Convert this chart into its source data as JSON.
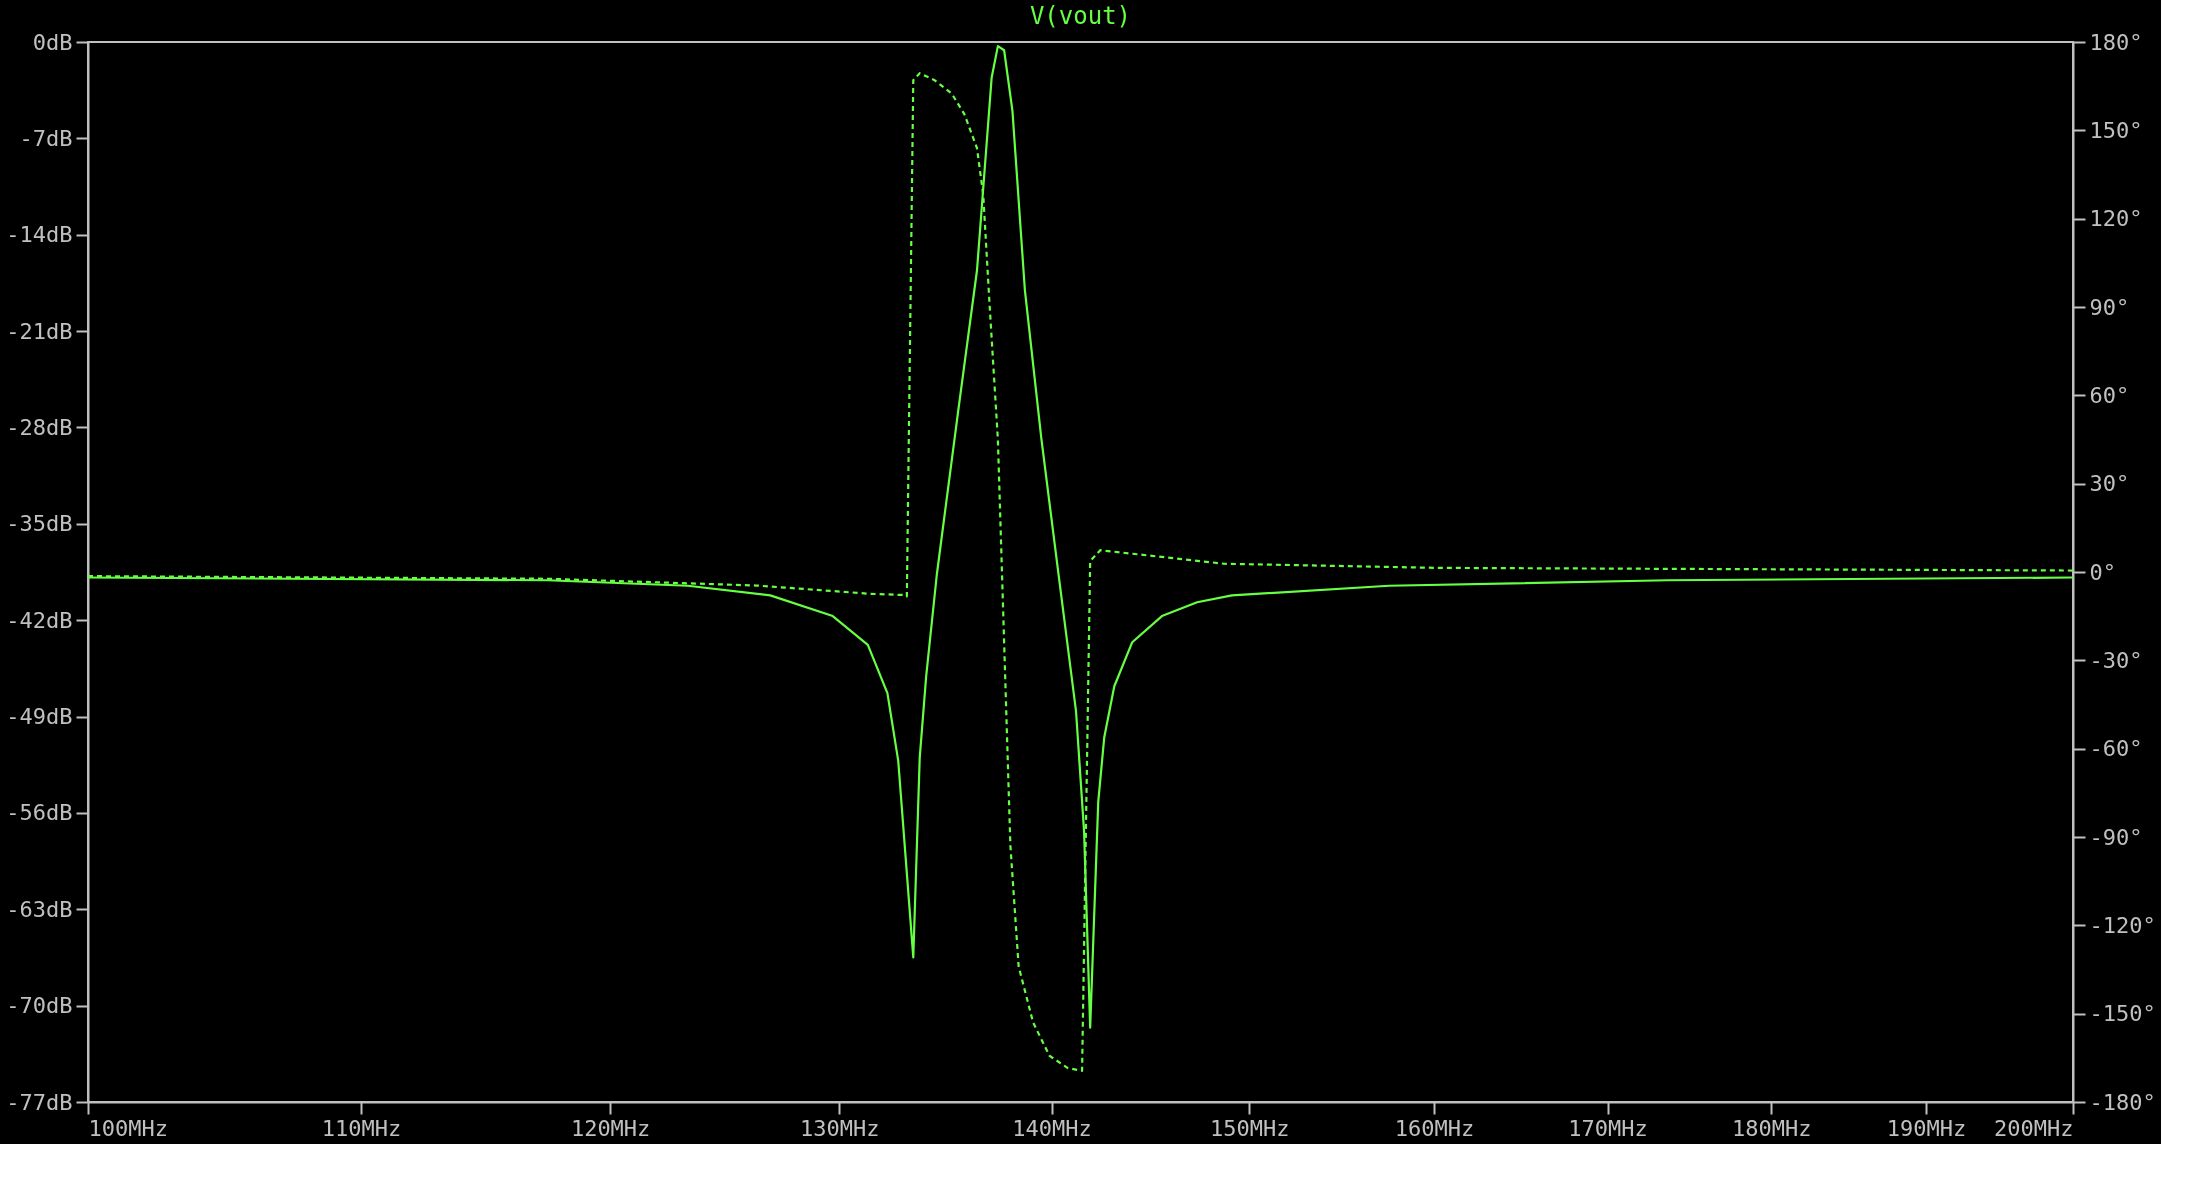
{
  "chart_data": {
    "type": "line",
    "title": "V(vout)",
    "log": "x",
    "xlim": [
      100,
      200
    ],
    "xticks": [
      {
        "value": 100,
        "label": "100MHz"
      },
      {
        "value": 110,
        "label": "110MHz"
      },
      {
        "value": 120,
        "label": "120MHz"
      },
      {
        "value": 130,
        "label": "130MHz"
      },
      {
        "value": 140,
        "label": "140MHz"
      },
      {
        "value": 150,
        "label": "150MHz"
      },
      {
        "value": 160,
        "label": "160MHz"
      },
      {
        "value": 170,
        "label": "170MHz"
      },
      {
        "value": 180,
        "label": "180MHz"
      },
      {
        "value": 190,
        "label": "190MHz"
      },
      {
        "value": 200,
        "label": "200MHz"
      }
    ],
    "ylim": [
      -77,
      0
    ],
    "yticks": [
      {
        "value": 0,
        "label": "0dB"
      },
      {
        "value": -7,
        "label": "-7dB"
      },
      {
        "value": -14,
        "label": "-14dB"
      },
      {
        "value": -21,
        "label": "-21dB"
      },
      {
        "value": -28,
        "label": "-28dB"
      },
      {
        "value": -35,
        "label": "-35dB"
      },
      {
        "value": -42,
        "label": "-42dB"
      },
      {
        "value": -49,
        "label": "-49dB"
      },
      {
        "value": -56,
        "label": "-56dB"
      },
      {
        "value": -63,
        "label": "-63dB"
      },
      {
        "value": -70,
        "label": "-70dB"
      },
      {
        "value": -77,
        "label": "-77dB"
      }
    ],
    "y2lim": [
      -180,
      180
    ],
    "y2ticks": [
      {
        "value": 180,
        "label": "180°"
      },
      {
        "value": 150,
        "label": "150°"
      },
      {
        "value": 120,
        "label": "120°"
      },
      {
        "value": 90,
        "label": "90°"
      },
      {
        "value": 60,
        "label": "60°"
      },
      {
        "value": 30,
        "label": "30°"
      },
      {
        "value": 0,
        "label": "0°"
      },
      {
        "value": -30,
        "label": "-30°"
      },
      {
        "value": -60,
        "label": "-60°"
      },
      {
        "value": -90,
        "label": "-90°"
      },
      {
        "value": -120,
        "label": "-120°"
      },
      {
        "value": -150,
        "label": "-150°"
      },
      {
        "value": -180,
        "label": "-180°"
      }
    ],
    "grid": false,
    "series": [
      {
        "color": "#66ff44",
        "line_style": "solid",
        "x": [
          100,
          117.4,
          123.3,
          126.9,
          129.7,
          131.3,
          132.2,
          132.7,
          133.4,
          133.7,
          134.0,
          134.5,
          135.5,
          136.4,
          137.1,
          137.4,
          137.7,
          138.1,
          138.7,
          139.5,
          140.3,
          141.2,
          141.6,
          141.9,
          142.3,
          142.6,
          143.1,
          144.0,
          145.5,
          147.3,
          149.1,
          157.5,
          173.6,
          200
        ],
        "values": [
          -38.9,
          -39.1,
          -39.5,
          -40.2,
          -41.7,
          -43.8,
          -47.3,
          -52.2,
          -66.5,
          -52.0,
          -46.1,
          -38.7,
          -26.9,
          -16.6,
          -2.6,
          -0.3,
          -0.6,
          -5.0,
          -18.0,
          -28.8,
          -38.2,
          -48.6,
          -57.4,
          -71.6,
          -55.2,
          -50.5,
          -46.8,
          -43.6,
          -41.7,
          -40.7,
          -40.2,
          -39.5,
          -39.1,
          -38.9
        ]
      },
      {
        "color": "#66ff44",
        "line_style": "dashed",
        "axis": "y2",
        "x": [
          100,
          117.4,
          126.3,
          131.4,
          132.9,
          133.1,
          133.4,
          133.7,
          134.4,
          135.2,
          135.8,
          136.4,
          136.7,
          137.0,
          137.4,
          137.7,
          138.0,
          138.4,
          139.1,
          139.9,
          140.8,
          141.5,
          141.9,
          142.4,
          148.7,
          160.2,
          181.3,
          200
        ],
        "values": [
          -1.4,
          -2.3,
          -4.6,
          -7.4,
          -7.8,
          -8.3,
          167,
          169.4,
          167,
          162.5,
          155.5,
          144,
          128,
          91,
          45,
          -24,
          -92.7,
          -134,
          -153,
          -164.3,
          -168.5,
          -169.4,
          3.7,
          7.4,
          2.8,
          1.4,
          0.9,
          0.5
        ]
      }
    ]
  }
}
